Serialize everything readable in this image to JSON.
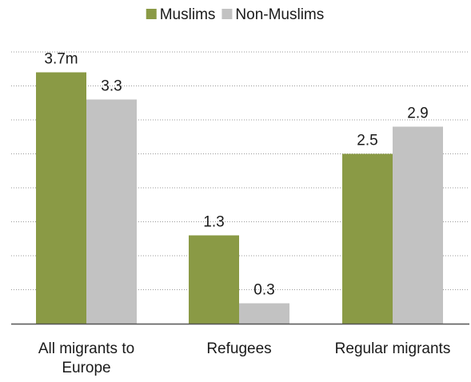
{
  "chart_data": {
    "type": "bar",
    "title": "",
    "xlabel": "",
    "ylabel": "",
    "ylim": [
      0,
      4
    ],
    "grid": true,
    "legend_position": "top-center",
    "categories": [
      [
        "All migrants to",
        "Europe"
      ],
      [
        "Refugees"
      ],
      [
        "Regular migrants"
      ]
    ],
    "series": [
      {
        "name": "Muslims",
        "color": "#8a9a45",
        "values": [
          3.7,
          1.3,
          2.5
        ],
        "labels": [
          "3.7m",
          "1.3",
          "2.5"
        ]
      },
      {
        "name": "Non-Muslims",
        "color": "#c2c2c2",
        "values": [
          3.3,
          0.3,
          2.9
        ],
        "labels": [
          "3.3",
          "0.3",
          "2.9"
        ]
      }
    ]
  }
}
